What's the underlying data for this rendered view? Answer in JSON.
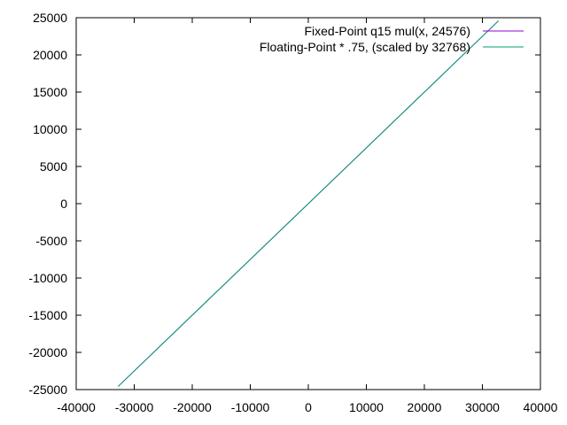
{
  "chart_data": {
    "type": "line",
    "title": "",
    "xlabel": "",
    "ylabel": "",
    "xlim": [
      -40000,
      40000
    ],
    "ylim": [
      -25000,
      25000
    ],
    "xticks": [
      -40000,
      -30000,
      -20000,
      -10000,
      0,
      10000,
      20000,
      30000,
      40000
    ],
    "yticks": [
      -25000,
      -20000,
      -15000,
      -10000,
      -5000,
      0,
      5000,
      10000,
      15000,
      20000,
      25000
    ],
    "xtick_labels": [
      "-40000",
      "-30000",
      "-20000",
      "-10000",
      "0",
      "10000",
      "20000",
      "30000",
      "40000"
    ],
    "ytick_labels": [
      "-25000",
      "-20000",
      "-15000",
      "-10000",
      "-5000",
      "0",
      "5000",
      "10000",
      "15000",
      "20000",
      "25000"
    ],
    "grid": false,
    "legend_position": "top-right",
    "series": [
      {
        "name": "Fixed-Point q15 mul(x, 24576)",
        "color": "#9400d3",
        "x": [
          -32768,
          32767
        ],
        "y": [
          -24576,
          24575
        ]
      },
      {
        "name": "Floating-Point * .75, (scaled by 32768)",
        "color": "#009e73",
        "x": [
          -32768,
          32767
        ],
        "y": [
          -24576,
          24575
        ]
      }
    ]
  }
}
